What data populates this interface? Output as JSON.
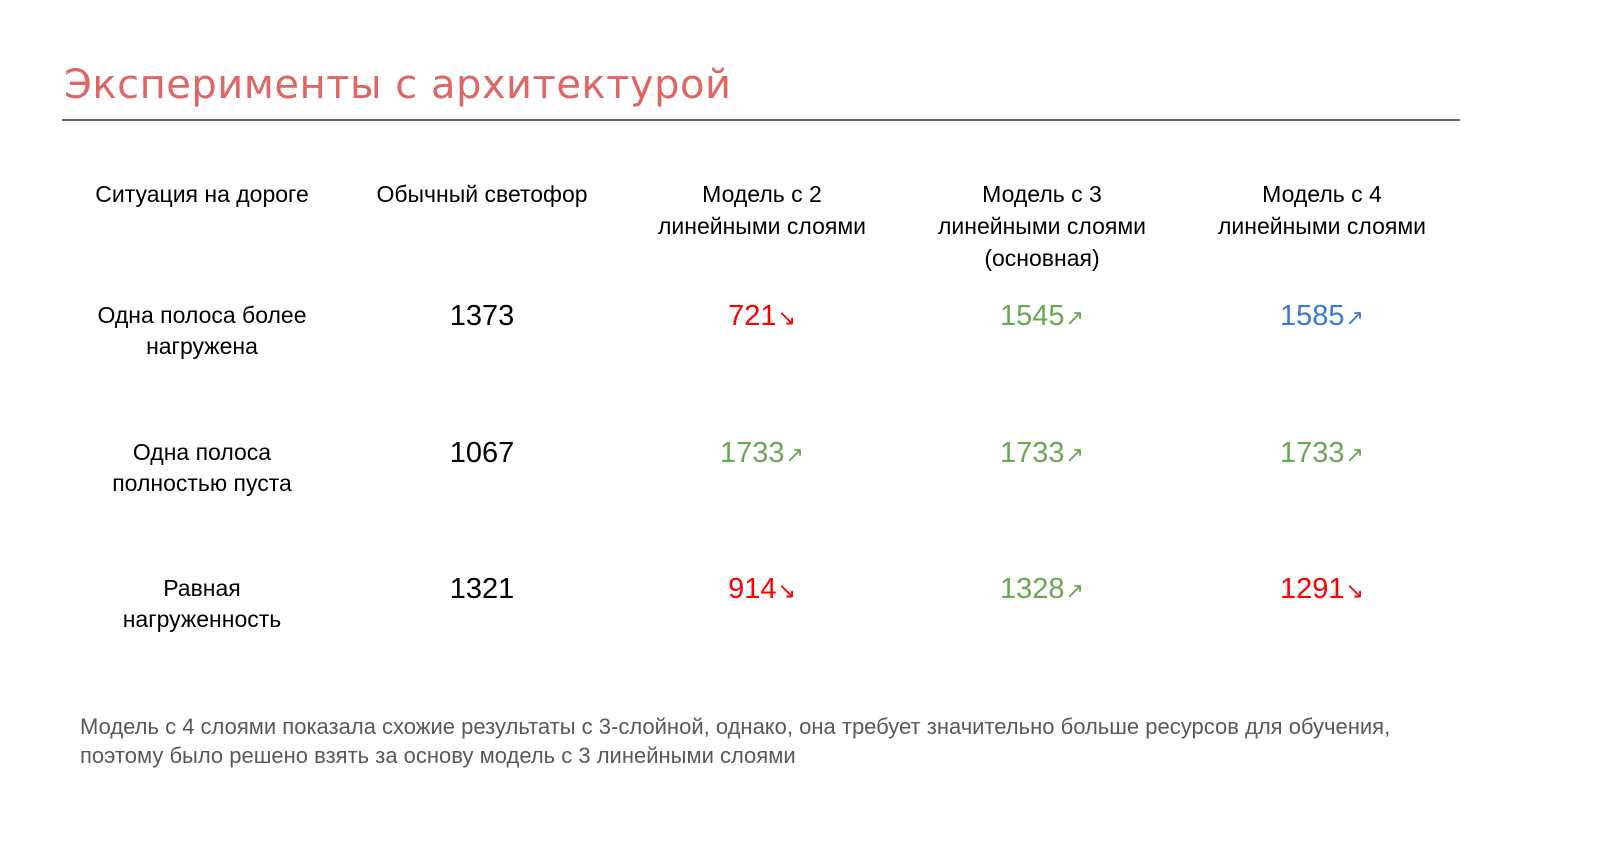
{
  "slide": {
    "title": "Эксперименты с архитектурой",
    "title_color": "#e06666",
    "note": "Модель с 4 слоями показала схожие результаты с 3-слойной, однако, она требует значительно больше ресурсов для обучения, поэтому было решено взять за основу модель с 3 линейными слоями"
  },
  "colors": {
    "down": "#ff0000",
    "up": "#6aa84f",
    "best": "#3c78d8",
    "neutral": "#000000"
  },
  "table": {
    "headers": [
      [
        "Ситуация на дороге"
      ],
      [
        "Обычный светофор"
      ],
      [
        "Модель с 2",
        "линейными слоями"
      ],
      [
        "Модель с 3",
        "линейными слоями",
        "(основная)"
      ],
      [
        "Модель с 4",
        "линейными слоями"
      ]
    ],
    "rows": [
      {
        "situation": [
          "Одна полоса более",
          "нагружена"
        ],
        "baseline": "1373",
        "values": [
          {
            "value": "721",
            "arrow": "↘",
            "trend": "down"
          },
          {
            "value": "1545",
            "arrow": "↗",
            "trend": "up"
          },
          {
            "value": "1585",
            "arrow": "↗",
            "trend": "best"
          }
        ]
      },
      {
        "situation": [
          "Одна полоса",
          "полностью пуста"
        ],
        "baseline": "1067",
        "values": [
          {
            "value": "1733",
            "arrow": "↗",
            "trend": "up"
          },
          {
            "value": "1733",
            "arrow": "↗",
            "trend": "up"
          },
          {
            "value": "1733",
            "arrow": "↗",
            "trend": "up"
          }
        ]
      },
      {
        "situation": [
          "Равная",
          "нагруженность"
        ],
        "baseline": "1321",
        "values": [
          {
            "value": "914",
            "arrow": "↘",
            "trend": "down"
          },
          {
            "value": "1328",
            "arrow": "↗",
            "trend": "up"
          },
          {
            "value": "1291",
            "arrow": "↘",
            "trend": "down"
          }
        ]
      }
    ]
  }
}
